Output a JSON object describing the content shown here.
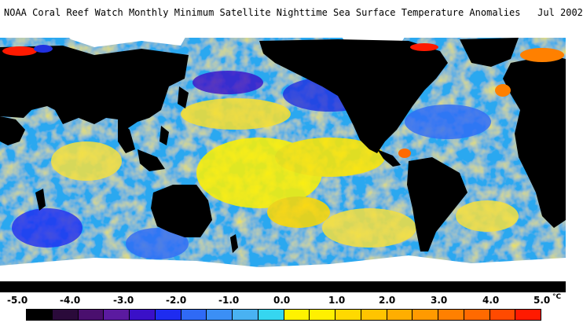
{
  "title": "NOAA Coral Reef Watch Monthly Minimum Satellite Nighttime Sea Surface Temperature Anomalies   Jul 2002",
  "legend": {
    "ticks": [
      "-5.0",
      "-4.0",
      "-3.0",
      "-2.0",
      "-1.0",
      "0.0",
      "1.0",
      "2.0",
      "3.0",
      "4.0",
      "5.0"
    ],
    "unit": "°C",
    "range": [
      -5.0,
      5.0
    ],
    "colors": [
      "#000000",
      "#2a0a3a",
      "#4a0f6e",
      "#5b1aa0",
      "#3a10c8",
      "#1e2cf0",
      "#2f6af5",
      "#3b8ff5",
      "#49b2f2",
      "#35d6f0",
      "#fff200",
      "#fff000",
      "#ffd900",
      "#ffc400",
      "#ffae00",
      "#ff9a00",
      "#ff8000",
      "#ff6a00",
      "#ff4a00",
      "#ff1a00"
    ]
  },
  "palette": {
    "land": "#000000",
    "ice": "#ffffff",
    "ocean_mix": [
      "#29b8f0",
      "#3f8ff0",
      "#f5e63b",
      "#fff200",
      "#2dd7f2",
      "#1a5af0"
    ]
  }
}
